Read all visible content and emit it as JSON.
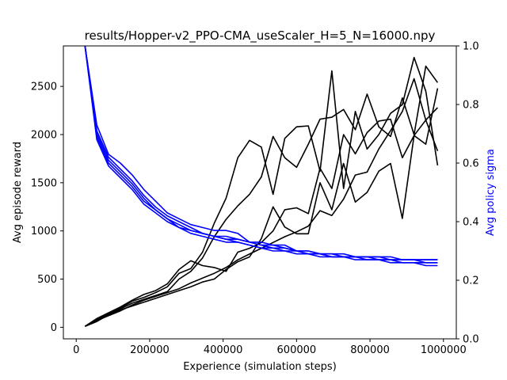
{
  "chart_data": {
    "type": "line",
    "title": "results/Hopper-v2_PPO-CMA_useScaler_H=5_N=16000.npy",
    "xlabel": "Experience (simulation steps)",
    "ylabel_left": "Avg episode reward",
    "ylabel_right": "Avg policy sigma",
    "xlim": [
      -35000,
      1035000
    ],
    "ylim_left": [
      -120,
      2920
    ],
    "ylim_right": [
      0.0,
      1.0
    ],
    "x_ticks": [
      0,
      200000,
      400000,
      600000,
      800000,
      1000000
    ],
    "y_left_ticks": [
      0,
      500,
      1000,
      1500,
      2000,
      2500
    ],
    "y_right_ticks": [
      0.0,
      0.2,
      0.4,
      0.6,
      0.8,
      1.0
    ],
    "x_tick_labels": [
      "0",
      "200000",
      "400000",
      "600000",
      "800000",
      "1000000"
    ],
    "y_left_tick_labels": [
      "0",
      "500",
      "1000",
      "1500",
      "2000",
      "2500"
    ],
    "y_right_tick_labels": [
      "0.0",
      "0.2",
      "0.4",
      "0.6",
      "0.8",
      "1.0"
    ],
    "grid": false,
    "colors": {
      "reward": "#000000",
      "sigma": "#0000ff"
    },
    "x": [
      24000,
      56000,
      88000,
      120000,
      152000,
      184000,
      216000,
      248000,
      280000,
      312000,
      344000,
      376000,
      408000,
      440000,
      472000,
      504000,
      536000,
      568000,
      600000,
      632000,
      664000,
      696000,
      728000,
      760000,
      792000,
      824000,
      856000,
      888000,
      920000,
      952000,
      984000
    ],
    "series_left": [
      {
        "values": [
          10,
          80,
          140,
          200,
          270,
          310,
          360,
          420,
          560,
          610,
          780,
          1080,
          1340,
          1760,
          1940,
          1870,
          1380,
          1960,
          2080,
          2090,
          1620,
          2660,
          1440,
          2240,
          1850,
          2000,
          2220,
          2310,
          2800,
          2450,
          1680
        ]
      },
      {
        "values": [
          10,
          70,
          140,
          190,
          250,
          290,
          330,
          370,
          500,
          580,
          720,
          940,
          1120,
          1260,
          1380,
          1560,
          1980,
          1760,
          1660,
          1900,
          2160,
          2180,
          2260,
          2050,
          2420,
          2080,
          1980,
          2380,
          2000,
          2710,
          2540
        ]
      },
      {
        "values": [
          10,
          90,
          150,
          210,
          280,
          340,
          380,
          450,
          600,
          690,
          640,
          620,
          580,
          780,
          820,
          880,
          1000,
          1220,
          1240,
          1180,
          1650,
          1440,
          2000,
          1800,
          2020,
          2140,
          2160,
          1760,
          1990,
          2150,
          1830
        ]
      },
      {
        "values": [
          10,
          60,
          130,
          180,
          220,
          260,
          300,
          340,
          380,
          420,
          470,
          500,
          600,
          680,
          730,
          920,
          1250,
          1040,
          970,
          970,
          1500,
          1220,
          1700,
          1300,
          1400,
          1620,
          1700,
          1130,
          1990,
          1900,
          2480
        ]
      },
      {
        "values": [
          10,
          70,
          120,
          170,
          230,
          280,
          320,
          360,
          400,
          460,
          510,
          560,
          620,
          700,
          760,
          820,
          880,
          940,
          990,
          1050,
          1210,
          1160,
          1330,
          1580,
          1610,
          1850,
          2040,
          2240,
          2580,
          2150,
          2280
        ]
      }
    ],
    "series_right": [
      {
        "values": [
          1.0,
          0.73,
          0.63,
          0.6,
          0.56,
          0.51,
          0.47,
          0.43,
          0.41,
          0.39,
          0.38,
          0.37,
          0.37,
          0.36,
          0.33,
          0.33,
          0.32,
          0.32,
          0.3,
          0.3,
          0.29,
          0.29,
          0.29,
          0.28,
          0.28,
          0.28,
          0.28,
          0.27,
          0.27,
          0.27,
          0.27
        ]
      },
      {
        "values": [
          1.0,
          0.71,
          0.62,
          0.58,
          0.54,
          0.49,
          0.45,
          0.42,
          0.4,
          0.38,
          0.36,
          0.35,
          0.34,
          0.34,
          0.33,
          0.32,
          0.31,
          0.31,
          0.3,
          0.29,
          0.29,
          0.28,
          0.28,
          0.28,
          0.28,
          0.27,
          0.27,
          0.27,
          0.27,
          0.26,
          0.26
        ]
      },
      {
        "values": [
          1.0,
          0.69,
          0.6,
          0.56,
          0.52,
          0.47,
          0.44,
          0.41,
          0.39,
          0.37,
          0.36,
          0.35,
          0.34,
          0.33,
          0.32,
          0.31,
          0.31,
          0.3,
          0.3,
          0.29,
          0.29,
          0.28,
          0.28,
          0.28,
          0.27,
          0.27,
          0.27,
          0.26,
          0.26,
          0.26,
          0.26
        ]
      },
      {
        "values": [
          1.0,
          0.7,
          0.61,
          0.57,
          0.53,
          0.48,
          0.44,
          0.41,
          0.38,
          0.37,
          0.36,
          0.35,
          0.35,
          0.34,
          0.33,
          0.32,
          0.32,
          0.31,
          0.3,
          0.3,
          0.29,
          0.29,
          0.28,
          0.28,
          0.28,
          0.28,
          0.27,
          0.27,
          0.27,
          0.27,
          0.27
        ]
      },
      {
        "values": [
          1.0,
          0.68,
          0.59,
          0.55,
          0.51,
          0.46,
          0.43,
          0.4,
          0.38,
          0.36,
          0.35,
          0.34,
          0.33,
          0.33,
          0.32,
          0.31,
          0.3,
          0.3,
          0.29,
          0.29,
          0.28,
          0.28,
          0.28,
          0.27,
          0.27,
          0.27,
          0.26,
          0.26,
          0.26,
          0.25,
          0.25
        ]
      }
    ]
  }
}
